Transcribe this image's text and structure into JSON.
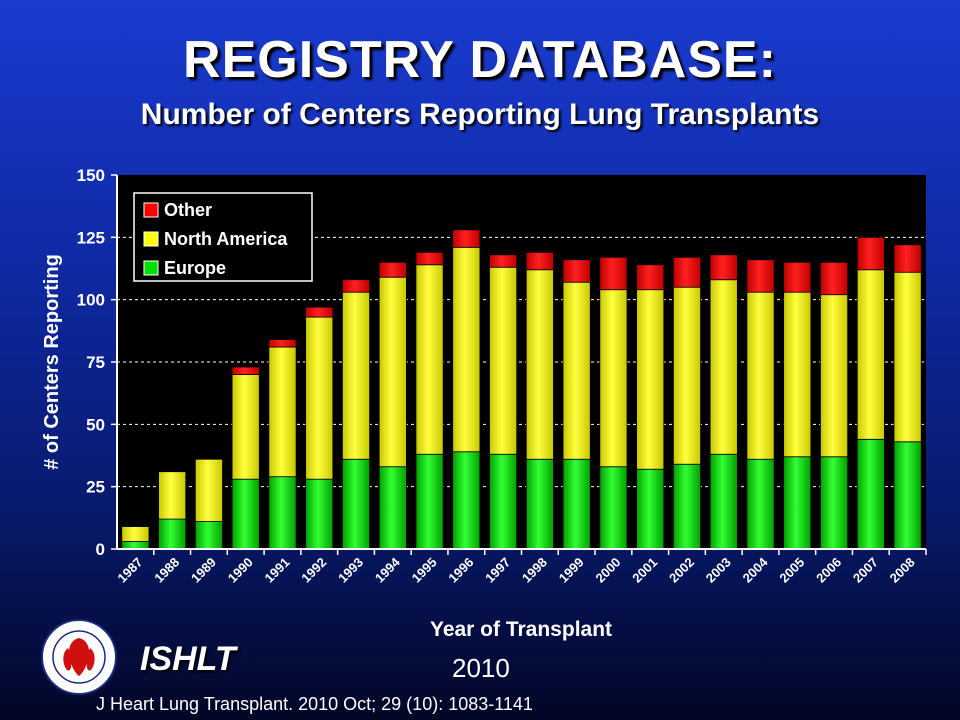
{
  "title": "REGISTRY DATABASE:",
  "subtitle": "Number of Centers Reporting Lung Transplants",
  "footer": {
    "org": "ISHLT",
    "year": "2010",
    "citation": "J Heart Lung Transplant. 2010 Oct; 29 (10): 1083-1141"
  },
  "colors": {
    "other": "#ff0000",
    "north_america": "#ffff00",
    "europe": "#00e000",
    "plot_bg": "#000000",
    "grid": "#ffffff"
  },
  "chart_data": {
    "type": "bar",
    "stacked": true,
    "xlabel": "Year of Transplant",
    "ylabel": "# of Centers Reporting",
    "ylim": [
      0,
      150
    ],
    "yticks": [
      0,
      25,
      50,
      75,
      100,
      125,
      150
    ],
    "grid": true,
    "legend_position": "top-left",
    "categories": [
      "1987",
      "1988",
      "1989",
      "1990",
      "1991",
      "1992",
      "1993",
      "1994",
      "1995",
      "1996",
      "1997",
      "1998",
      "1999",
      "2000",
      "2001",
      "2002",
      "2003",
      "2004",
      "2005",
      "2006",
      "2007",
      "2008"
    ],
    "series": [
      {
        "name": "Europe",
        "values": [
          3,
          12,
          11,
          28,
          29,
          28,
          36,
          33,
          38,
          39,
          38,
          36,
          36,
          33,
          32,
          34,
          38,
          36,
          37,
          37,
          44,
          43
        ]
      },
      {
        "name": "North America",
        "values": [
          6,
          19,
          25,
          42,
          52,
          65,
          67,
          76,
          76,
          82,
          75,
          76,
          71,
          71,
          72,
          71,
          70,
          67,
          66,
          65,
          68,
          68
        ]
      },
      {
        "name": "Other",
        "values": [
          0,
          0,
          0,
          3,
          3,
          4,
          5,
          6,
          5,
          7,
          5,
          7,
          9,
          13,
          10,
          12,
          10,
          13,
          12,
          13,
          13,
          11
        ]
      }
    ],
    "legend_order": [
      "Other",
      "North America",
      "Europe"
    ]
  }
}
